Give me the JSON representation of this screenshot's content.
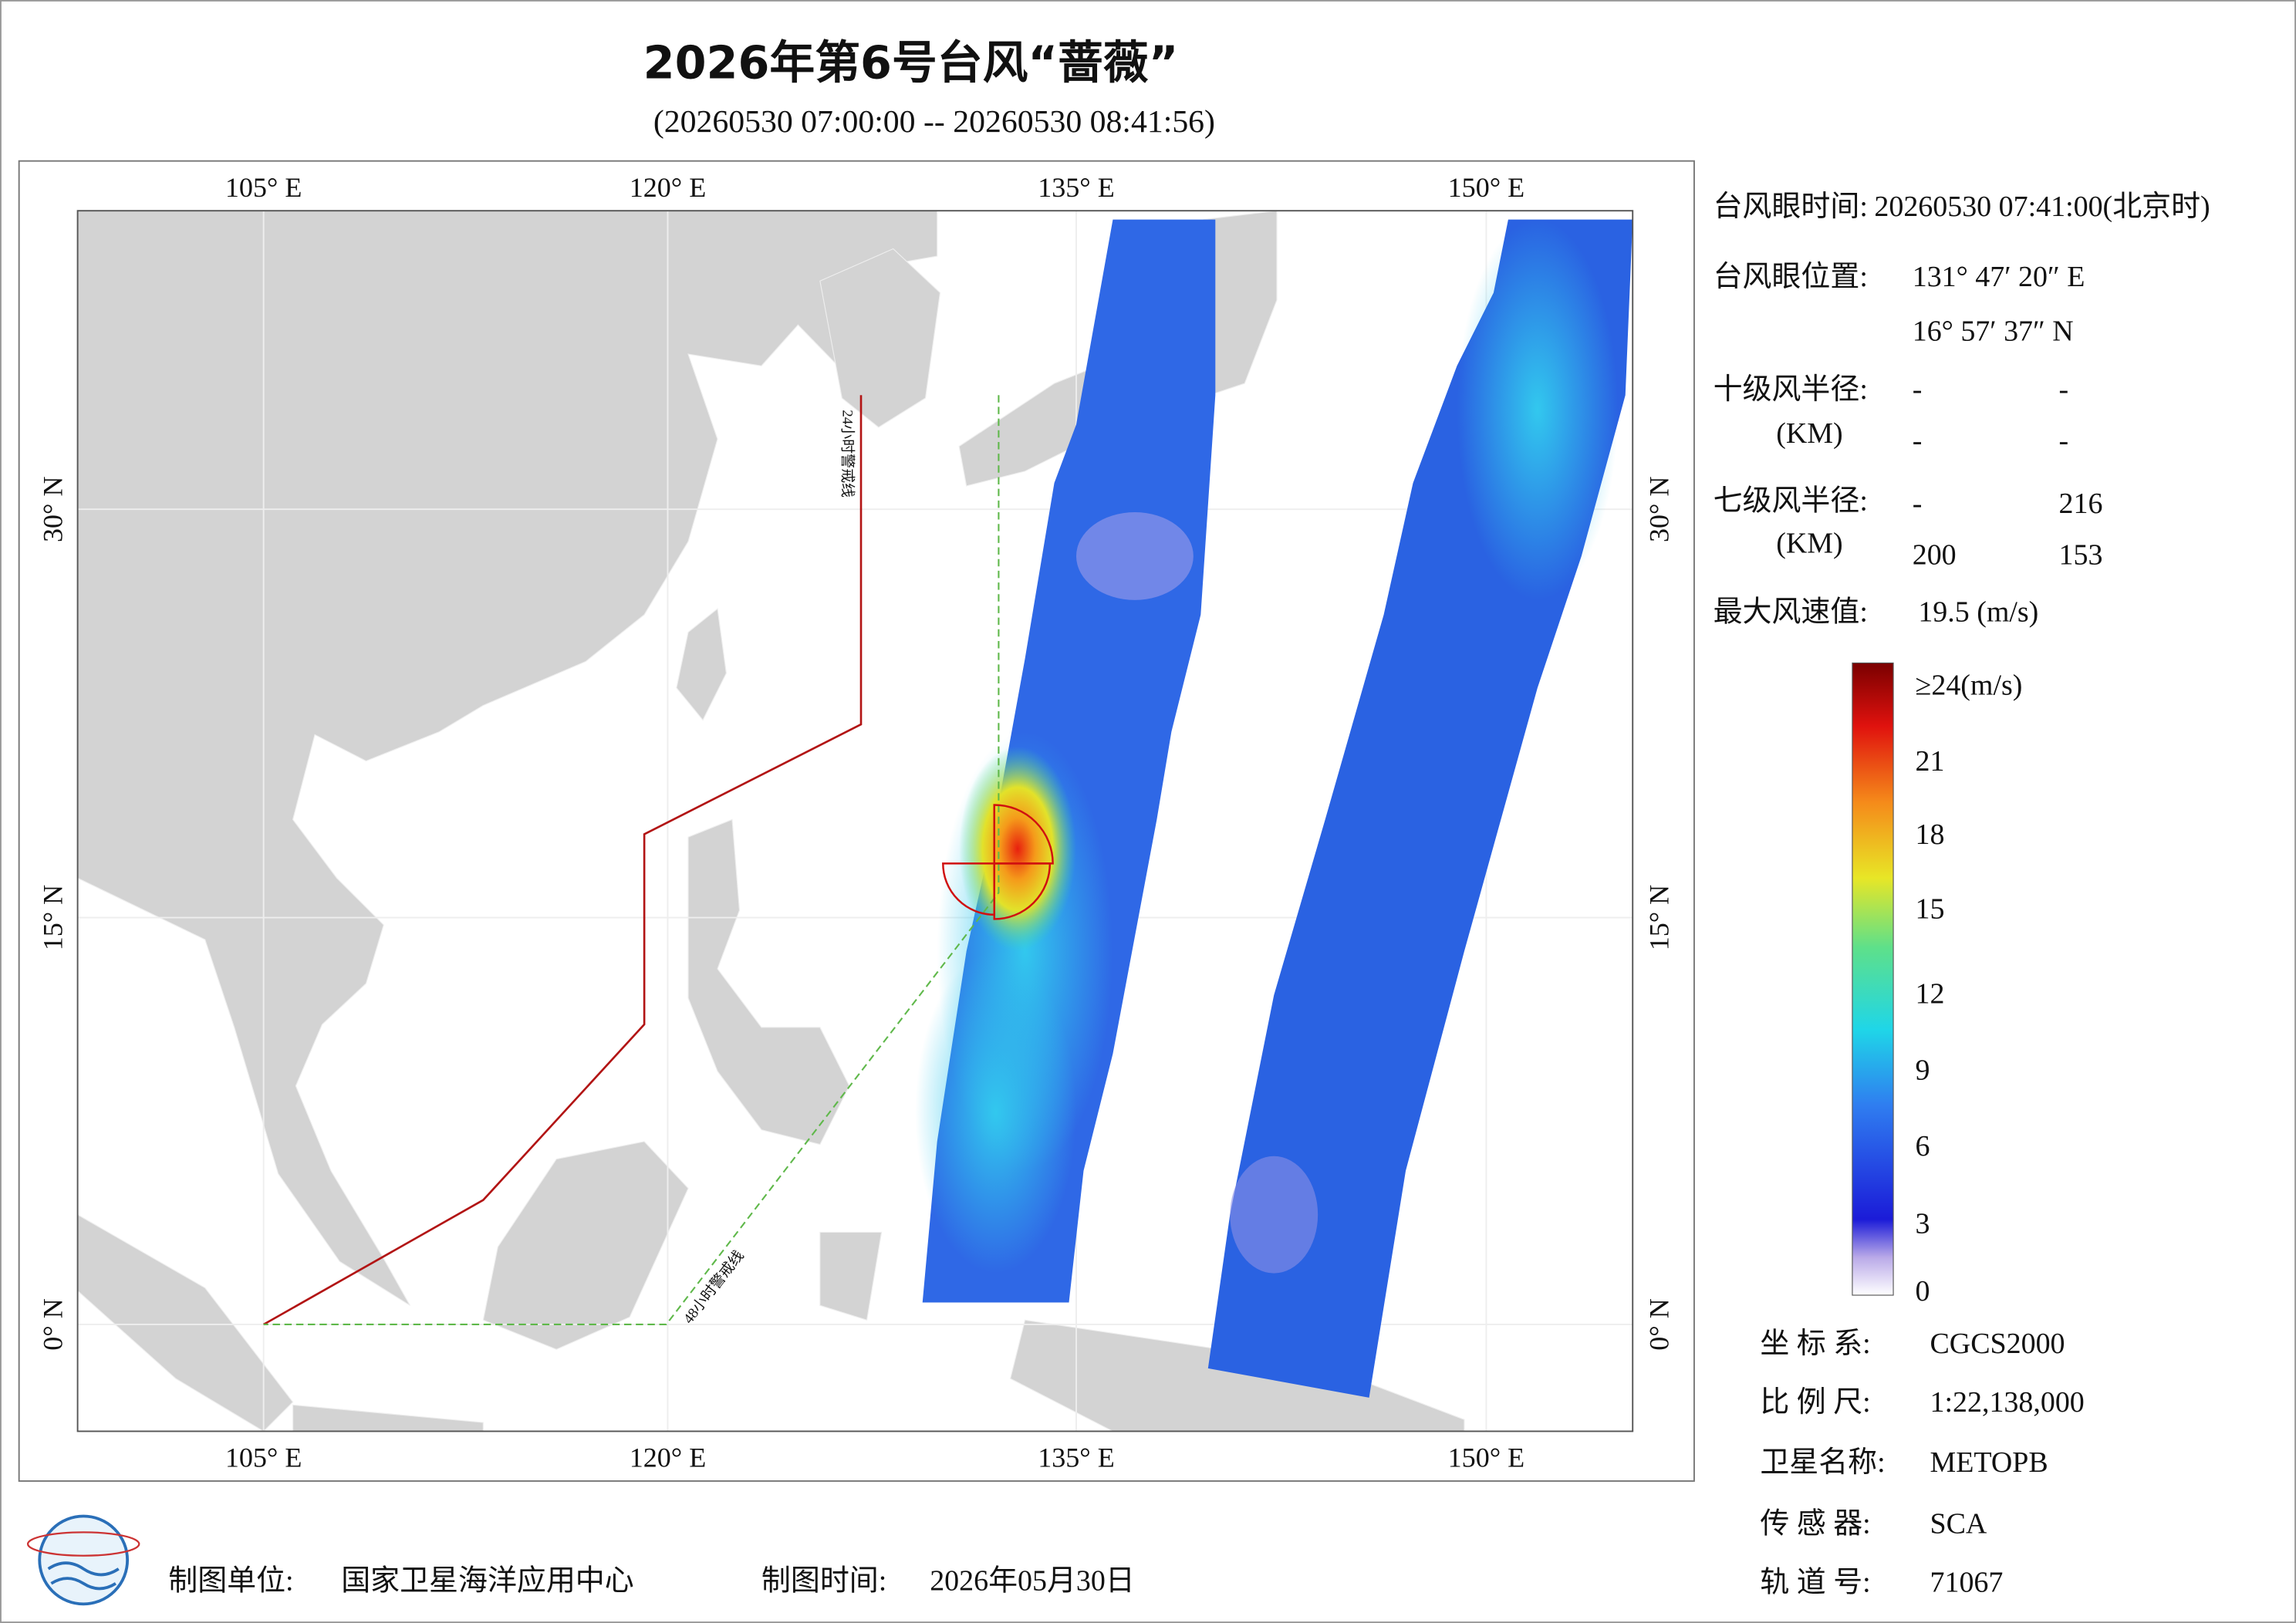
{
  "header": {
    "title": "2026年第6号台风“蔷薇”",
    "subtitle": "(20260530 07:00:00 -- 20260530 08:41:56)"
  },
  "map": {
    "lon_labels": [
      "105° E",
      "120° E",
      "135° E",
      "150° E"
    ],
    "lat_labels": [
      "30° N",
      "15° N",
      "0° N"
    ],
    "warning_lines": [
      "24小时警戒线",
      "48小时警戒线"
    ]
  },
  "info": {
    "eye_time_label": "台风眼时间:",
    "eye_time": "20260530 07:41:00(北京时)",
    "eye_position_label": "台风眼位置:",
    "eye_lon": "131° 47′ 20″ E",
    "eye_lat": "16° 57′ 37″ N",
    "r10_label": "十级风半径:",
    "r7_label": "七级风半径:",
    "unit_label": "(KM)",
    "r10": [
      "-",
      "-",
      "-",
      "-"
    ],
    "r7": [
      "-",
      "216",
      "200",
      "153"
    ],
    "max_wind_label": "最大风速值:",
    "max_wind": "19.5 (m/s)"
  },
  "legend": {
    "labels": [
      "≥24(m/s)",
      "21",
      "18",
      "15",
      "12",
      "9",
      "6",
      "3",
      "0"
    ]
  },
  "meta": {
    "rows": [
      [
        "坐 标 系:",
        "CGCS2000"
      ],
      [
        "比 例 尺:",
        "1:22,138,000"
      ],
      [
        "卫星名称:",
        "METOPB"
      ],
      [
        "传 感 器:",
        "SCA"
      ],
      [
        "轨 道 号:",
        "71067"
      ]
    ]
  },
  "footer": {
    "unit_label": "制图单位:",
    "unit": "国家卫星海洋应用中心",
    "time_label": "制图时间:",
    "time": "2026年05月30日"
  }
}
